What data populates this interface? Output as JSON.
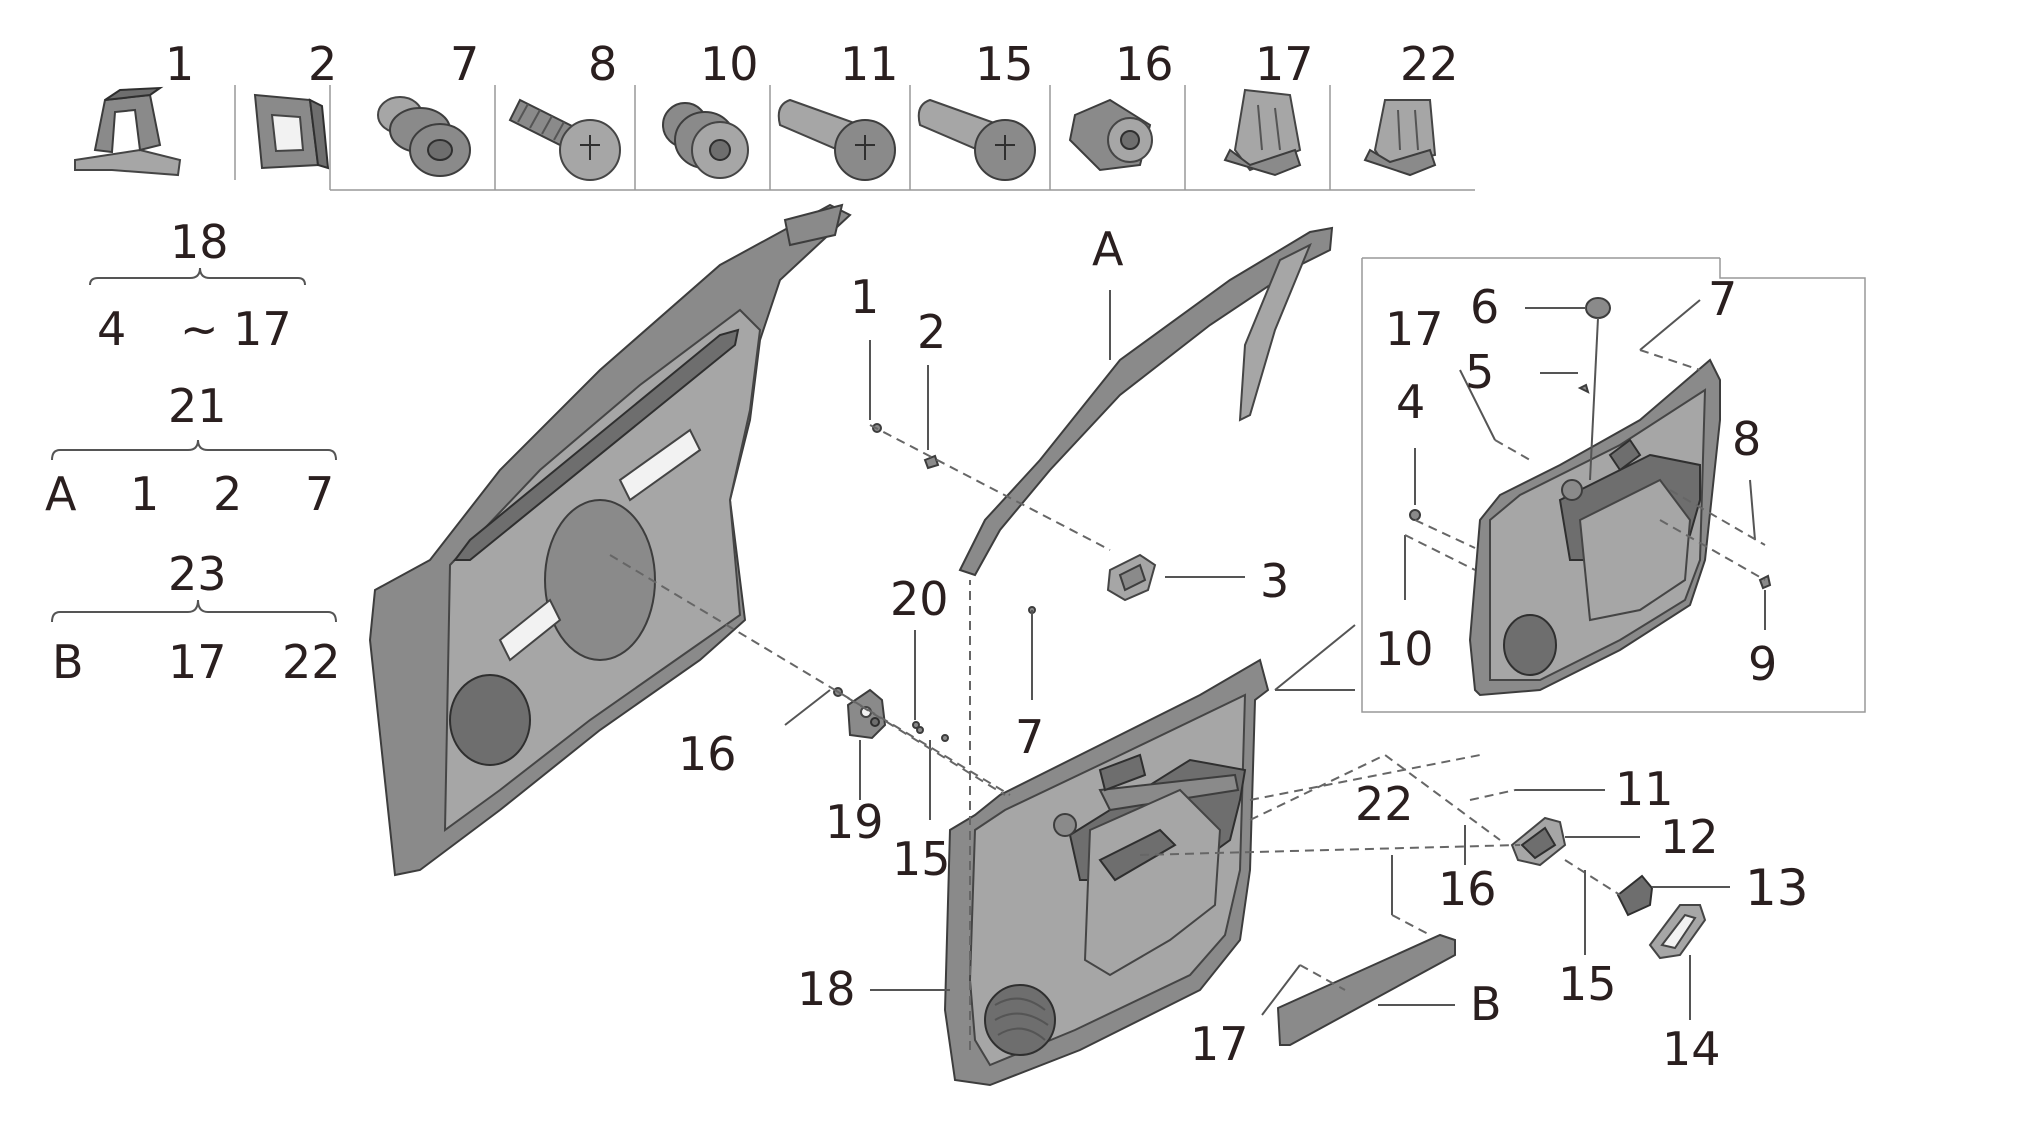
{
  "header_parts": [
    "1",
    "2",
    "7",
    "8",
    "10",
    "11",
    "15",
    "16",
    "17",
    "22"
  ],
  "groups": [
    {
      "label": "18",
      "members": [
        "4",
        "~ 17"
      ]
    },
    {
      "label": "21",
      "members": [
        "A",
        "1",
        "2",
        "7"
      ]
    },
    {
      "label": "23",
      "members": [
        "B",
        "17",
        "22"
      ]
    }
  ],
  "callouts": {
    "c1": "1",
    "c2": "2",
    "c3": "3",
    "cA": "A",
    "c7a": "7",
    "c7b": "7",
    "c20": "20",
    "c16a": "16",
    "c19": "19",
    "c15a": "15",
    "c18": "18",
    "c22": "22",
    "c17a": "17",
    "cB": "B",
    "c11": "11",
    "c12": "12",
    "c16b": "16",
    "c13": "13",
    "c15b": "15",
    "c14": "14",
    "i6": "6",
    "i17": "17",
    "i5": "5",
    "i4": "4",
    "i8": "8",
    "i10": "10",
    "i9": "9"
  }
}
